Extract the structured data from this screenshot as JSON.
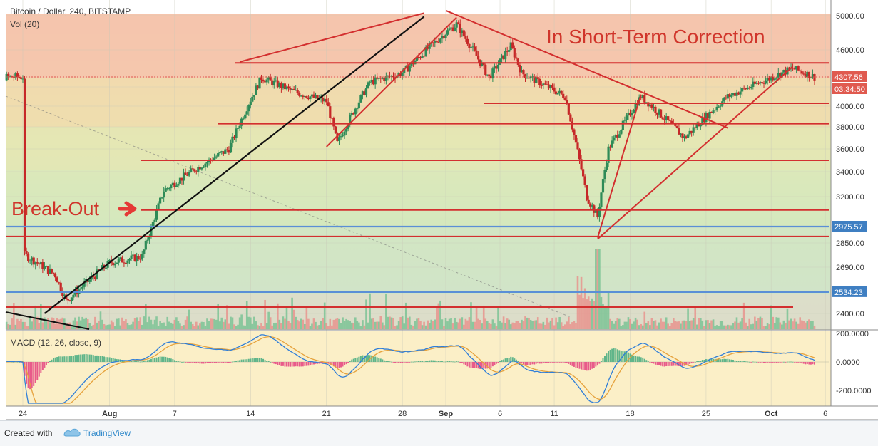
{
  "chart_data": {
    "type": "candlestick",
    "symbol_label": "Bitcoin / Dollar, 240, BITSTAMP",
    "volume_label": "Vol (20)",
    "macd_label": "MACD (12, 26, close, 9)",
    "annotations": [
      "In Short-Term Correction",
      "Break-Out"
    ],
    "price_axis": {
      "ticks": [
        5000,
        4600,
        4200,
        4000,
        3800,
        3600,
        3400,
        3200,
        2850,
        2690,
        2400
      ],
      "tick_labels": [
        "5000.00",
        "4600.00",
        "4200.00",
        "4000.00",
        "3800.00",
        "3600.00",
        "3400.00",
        "3200.00",
        "2850.00",
        "2690.00",
        "2400.00"
      ]
    },
    "price_badges": [
      {
        "label": "4307.56",
        "color": "#e05a4f"
      },
      {
        "label": "03:34:50",
        "color": "#e05a4f"
      },
      {
        "label": "2975.57",
        "color": "#3f7fc2"
      },
      {
        "label": "2534.23",
        "color": "#3f7fc2"
      }
    ],
    "macd_axis": {
      "ticks": [
        200,
        0,
        -200
      ],
      "tick_labels": [
        "200.0000",
        "0.0000",
        "-200.0000"
      ]
    },
    "time_axis": {
      "labels": [
        "24",
        "Aug",
        "7",
        "14",
        "21",
        "28",
        "Sep",
        "11",
        "18",
        "25",
        "Oct",
        "6"
      ]
    },
    "horizontal_levels": [
      4460,
      4030,
      3830,
      3500,
      3100,
      2975.57,
      2900,
      2534.23,
      2440
    ],
    "price_path": [
      [
        "Jul 24",
        2780
      ],
      [
        "Jul 27",
        2640
      ],
      [
        "Jul 28",
        2480
      ],
      [
        "Aug 1",
        2720
      ],
      [
        "Aug 4",
        2760
      ],
      [
        "Aug 6",
        3250
      ],
      [
        "Aug 9",
        3430
      ],
      [
        "Aug 12",
        3600
      ],
      [
        "Aug 15",
        4300
      ],
      [
        "Aug 18",
        4150
      ],
      [
        "Aug 21",
        4050
      ],
      [
        "Aug 22",
        3650
      ],
      [
        "Aug 25",
        4250
      ],
      [
        "Aug 28",
        4350
      ],
      [
        "Sep 1",
        4800
      ],
      [
        "Sep 2",
        4900
      ],
      [
        "Sep 5",
        4300
      ],
      [
        "Sep 7",
        4650
      ],
      [
        "Sep 8",
        4350
      ],
      [
        "Sep 12",
        4100
      ],
      [
        "Sep 14",
        3200
      ],
      [
        "Sep 15",
        3050
      ],
      [
        "Sep 16",
        3600
      ],
      [
        "Sep 19",
        4100
      ],
      [
        "Sep 23",
        3700
      ],
      [
        "Sep 27",
        4100
      ],
      [
        "Sep 29",
        4200
      ],
      [
        "Oct 3",
        4400
      ],
      [
        "Oct 5",
        4307.56
      ]
    ],
    "colors": {
      "up": "#2e8b57",
      "down": "#c62828",
      "trend_red": "#d32f2f",
      "trend_black": "#111111",
      "macd": "#2f7ed8",
      "signal": "#e6a23c"
    }
  },
  "footer": {
    "created_with": "Created with",
    "brand": "TradingView"
  }
}
